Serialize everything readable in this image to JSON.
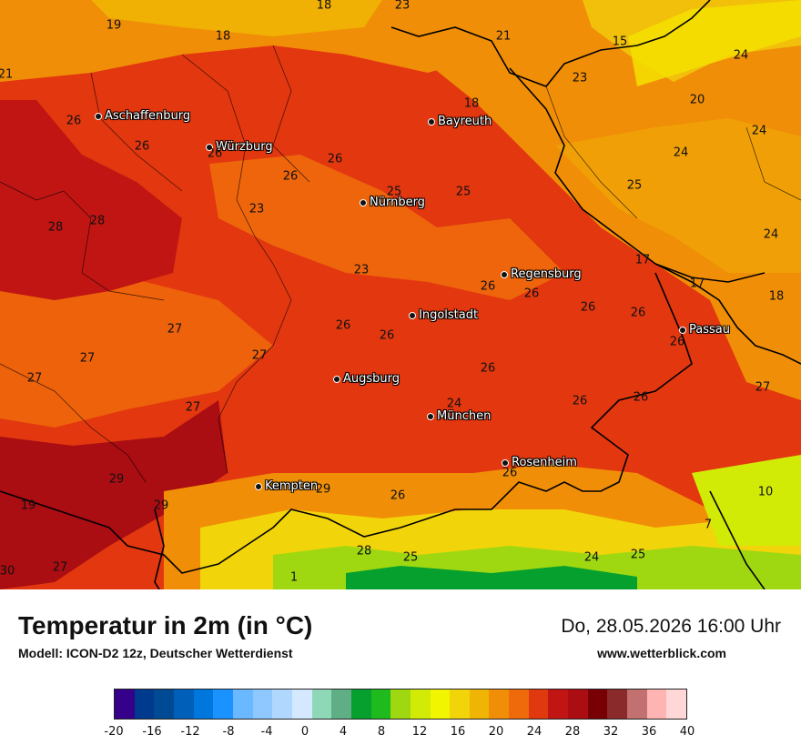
{
  "header": {
    "title": "Temperatur in 2m (in °C)",
    "model": "Modell: ICON-D2 12z, Deutscher Wetterdienst",
    "datetime": "Do, 28.05.2026 16:00 Uhr",
    "website": "www.wetterblick.com"
  },
  "cities": [
    {
      "name": "Aschaffenburg"
    },
    {
      "name": "Würzburg"
    },
    {
      "name": "Bayreuth"
    },
    {
      "name": "Nürnberg"
    },
    {
      "name": "Regensburg"
    },
    {
      "name": "Ingolstadt"
    },
    {
      "name": "Passau"
    },
    {
      "name": "Augsburg"
    },
    {
      "name": "München"
    },
    {
      "name": "Rosenheim"
    },
    {
      "name": "Kempten"
    }
  ],
  "temperature_labels": [
    "18",
    "23",
    "19",
    "18",
    "21",
    "15",
    "24",
    "21",
    "23",
    "18",
    "20",
    "26",
    "24",
    "26",
    "26",
    "26",
    "24",
    "26",
    "25",
    "25",
    "28",
    "28",
    "23",
    "25",
    "24",
    "23",
    "17",
    "26",
    "26",
    "17",
    "18",
    "26",
    "26",
    "26",
    "26",
    "27",
    "26",
    "27",
    "27",
    "27",
    "26",
    "24",
    "26",
    "27",
    "26",
    "27",
    "29",
    "29",
    "26",
    "10",
    "19",
    "26",
    "7",
    "29",
    "30",
    "27",
    "28",
    "25",
    "24",
    "25",
    "1"
  ],
  "legend": {
    "colors": [
      "#35008a",
      "#003a8f",
      "#004a94",
      "#005fb8",
      "#0077dd",
      "#1a92ff",
      "#6ab8ff",
      "#8ec8ff",
      "#b0d8ff",
      "#d4e8ff",
      "#8ed8b8",
      "#60ae86",
      "#06a02e",
      "#1eba1e",
      "#9fd811",
      "#d2eb06",
      "#f2f500",
      "#f2d40a",
      "#f0b404",
      "#f08e07",
      "#ee6a0b",
      "#e0390f",
      "#c01513",
      "#aa0d12",
      "#780005",
      "#8a2a2a",
      "#c27070",
      "#ffb4b4",
      "#ffd7d7"
    ],
    "ticks": [
      "-20",
      "-16",
      "-12",
      "-8",
      "-4",
      "0",
      "4",
      "8",
      "12",
      "16",
      "20",
      "24",
      "28",
      "32",
      "36",
      "40"
    ],
    "min": -20,
    "max": 40
  }
}
